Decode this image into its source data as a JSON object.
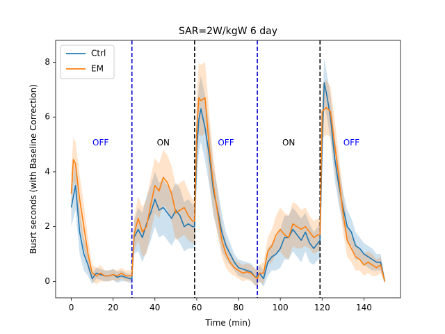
{
  "chart_data": {
    "type": "line",
    "title": "SAR=2W/kgW 6 day",
    "xlabel": "Time (min)",
    "ylabel": "Busrt seconds (with Baseline Correction)",
    "xlim": [
      -7.5,
      157.5
    ],
    "ylim": [
      -0.6,
      8.8
    ],
    "xticks": [
      0,
      20,
      40,
      60,
      80,
      100,
      120,
      140
    ],
    "yticks": [
      0,
      2,
      4,
      6,
      8
    ],
    "grid": false,
    "legend_position": "top-left",
    "vlines": [
      {
        "x": 29,
        "color": "#0000cc"
      },
      {
        "x": 59,
        "color": "#000000"
      },
      {
        "x": 89,
        "color": "#0000cc"
      },
      {
        "x": 119,
        "color": "#000000"
      }
    ],
    "annotations": [
      {
        "text": "OFF",
        "x": 14,
        "y": 5.05,
        "color": "#0000ff"
      },
      {
        "text": "ON",
        "x": 44,
        "y": 5.05,
        "color": "#000000"
      },
      {
        "text": "OFF",
        "x": 74,
        "y": 5.05,
        "color": "#0000ff"
      },
      {
        "text": "ON",
        "x": 104,
        "y": 5.05,
        "color": "#000000"
      },
      {
        "text": "OFF",
        "x": 134,
        "y": 5.05,
        "color": "#0000ff"
      }
    ],
    "series": [
      {
        "name": "Ctrl",
        "color": "#1f77b4",
        "x": [
          0,
          2,
          4,
          6,
          8,
          10,
          12,
          14,
          16,
          18,
          20,
          22,
          24,
          26,
          28,
          29,
          30,
          32,
          34,
          36,
          38,
          40,
          42,
          44,
          46,
          48,
          50,
          52,
          54,
          56,
          58,
          59,
          60,
          61,
          62,
          64,
          66,
          68,
          70,
          72,
          74,
          76,
          78,
          80,
          82,
          84,
          86,
          88,
          89,
          90,
          92,
          94,
          96,
          98,
          100,
          102,
          104,
          106,
          108,
          110,
          112,
          114,
          116,
          118,
          119,
          120,
          121,
          122,
          124,
          126,
          128,
          130,
          132,
          134,
          136,
          138,
          140,
          142,
          144,
          146,
          148,
          150
        ],
        "values": [
          2.7,
          3.5,
          1.8,
          1.0,
          0.6,
          0.1,
          0.3,
          0.25,
          0.2,
          0.2,
          0.25,
          0.15,
          0.2,
          0.15,
          0.1,
          0.1,
          1.6,
          1.9,
          1.6,
          2.1,
          2.5,
          3.0,
          2.6,
          2.7,
          2.5,
          2.3,
          2.6,
          2.4,
          2.0,
          2.1,
          2.0,
          2.0,
          4.8,
          5.9,
          6.3,
          5.6,
          4.6,
          3.3,
          2.6,
          1.8,
          1.3,
          1.0,
          0.7,
          0.5,
          0.45,
          0.4,
          0.35,
          0.15,
          0.2,
          0.3,
          0.1,
          0.7,
          0.9,
          1.0,
          1.2,
          1.6,
          1.6,
          1.9,
          1.7,
          1.5,
          1.8,
          1.4,
          1.2,
          1.4,
          1.5,
          5.0,
          7.25,
          6.9,
          6.0,
          4.5,
          3.5,
          2.7,
          2.0,
          1.8,
          1.3,
          1.2,
          1.0,
          0.9,
          0.8,
          0.7,
          0.7,
          0.0
        ],
        "band": [
          0.7,
          0.9,
          0.8,
          0.6,
          0.4,
          0.2,
          0.2,
          0.2,
          0.2,
          0.2,
          0.2,
          0.2,
          0.2,
          0.15,
          0.15,
          0.2,
          0.6,
          0.8,
          0.9,
          1.0,
          1.0,
          1.0,
          1.0,
          1.0,
          1.0,
          1.0,
          1.0,
          1.0,
          0.9,
          0.9,
          0.8,
          0.8,
          1.2,
          1.2,
          1.2,
          1.2,
          1.1,
          0.9,
          0.8,
          0.7,
          0.5,
          0.4,
          0.3,
          0.3,
          0.3,
          0.3,
          0.3,
          0.3,
          0.3,
          0.3,
          0.3,
          0.5,
          0.5,
          0.6,
          0.7,
          0.8,
          0.8,
          0.8,
          0.8,
          0.8,
          0.7,
          0.7,
          0.6,
          0.6,
          0.7,
          0.9,
          0.9,
          0.8,
          0.8,
          0.8,
          0.7,
          0.6,
          0.6,
          0.5,
          0.5,
          0.4,
          0.4,
          0.4,
          0.4,
          0.3,
          0.3,
          0.1
        ]
      },
      {
        "name": "EM",
        "color": "#ff7f0e",
        "x": [
          0,
          1,
          2,
          4,
          6,
          8,
          10,
          12,
          14,
          16,
          18,
          20,
          22,
          24,
          26,
          28,
          29,
          30,
          32,
          34,
          36,
          38,
          40,
          42,
          44,
          46,
          48,
          50,
          52,
          54,
          56,
          58,
          59,
          60,
          61,
          62,
          64,
          66,
          68,
          70,
          72,
          74,
          76,
          78,
          80,
          82,
          84,
          86,
          88,
          89,
          90,
          92,
          94,
          96,
          98,
          100,
          102,
          104,
          106,
          108,
          110,
          112,
          114,
          116,
          118,
          119,
          120,
          122,
          124,
          126,
          128,
          130,
          132,
          134,
          136,
          138,
          140,
          142,
          144,
          146,
          148,
          150
        ],
        "values": [
          3.2,
          4.45,
          4.3,
          3.0,
          2.0,
          1.0,
          0.3,
          0.2,
          0.3,
          0.2,
          0.2,
          0.25,
          0.2,
          0.3,
          0.2,
          0.2,
          0.2,
          1.7,
          2.3,
          1.8,
          2.0,
          2.8,
          3.5,
          3.3,
          3.8,
          3.6,
          3.2,
          2.5,
          2.6,
          2.7,
          2.4,
          2.2,
          2.2,
          5.5,
          6.7,
          6.6,
          6.7,
          4.9,
          3.5,
          2.5,
          1.5,
          1.0,
          0.7,
          0.5,
          0.4,
          0.3,
          0.35,
          0.3,
          0.15,
          0.1,
          0.3,
          0.3,
          1.1,
          1.3,
          1.7,
          1.9,
          1.7,
          1.6,
          2.1,
          2.0,
          1.9,
          2.0,
          1.8,
          1.6,
          1.7,
          1.7,
          6.2,
          6.35,
          6.2,
          5.0,
          3.8,
          2.5,
          1.5,
          1.2,
          0.9,
          0.8,
          0.6,
          0.7,
          0.6,
          0.5,
          0.6,
          0.0
        ],
        "band": [
          0.9,
          0.8,
          0.8,
          0.9,
          0.8,
          0.6,
          0.3,
          0.3,
          0.3,
          0.2,
          0.2,
          0.2,
          0.2,
          0.2,
          0.2,
          0.2,
          0.2,
          0.6,
          0.8,
          0.9,
          1.0,
          1.0,
          1.0,
          1.0,
          1.0,
          1.0,
          1.0,
          1.0,
          1.0,
          1.0,
          0.9,
          0.8,
          0.8,
          1.3,
          1.3,
          1.3,
          1.3,
          1.2,
          1.0,
          0.8,
          0.6,
          0.5,
          0.4,
          0.3,
          0.3,
          0.3,
          0.3,
          0.3,
          0.3,
          0.3,
          0.3,
          0.4,
          0.5,
          0.6,
          0.7,
          0.8,
          0.8,
          0.8,
          0.8,
          0.8,
          0.7,
          0.7,
          0.6,
          0.6,
          0.6,
          0.6,
          1.0,
          1.0,
          0.9,
          0.9,
          0.8,
          0.7,
          0.6,
          0.5,
          0.5,
          0.4,
          0.4,
          0.4,
          0.4,
          0.3,
          0.3,
          0.1
        ]
      }
    ]
  }
}
